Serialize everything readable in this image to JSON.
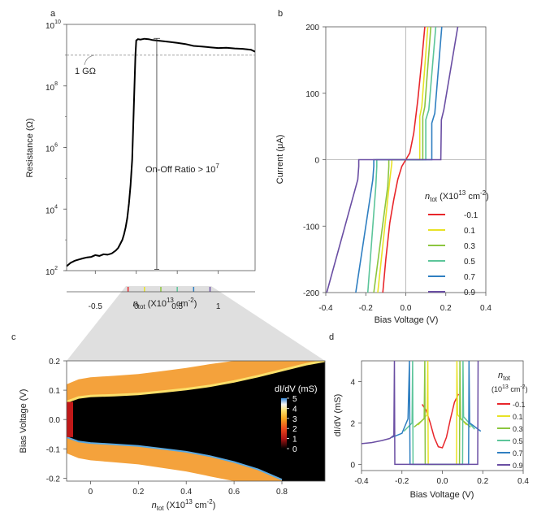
{
  "panel_letters": [
    "a",
    "b",
    "c",
    "d"
  ],
  "chart_data": [
    {
      "panel": "a",
      "type": "line",
      "xlabel_main": "n",
      "xlabel_sub": "tot",
      "xlabel_unit": "(X10",
      "xlabel_exp": "13",
      "xlabel_unit2": "cm",
      "xlabel_exp2": "-2",
      "xlabel_close": ")",
      "ylabel": "Resistance (Ω)",
      "xlim": [
        -0.85,
        1.45
      ],
      "yscale": "log",
      "ylim": [
        100,
        10000000000
      ],
      "x_ticks": [
        -0.5,
        0,
        0.5,
        1
      ],
      "x_tick_labels": [
        "-0.5",
        "0",
        "0.5",
        "1"
      ],
      "y_ticks": [
        100,
        10000,
        1000000,
        100000000,
        10000000000
      ],
      "y_tick_base": "10",
      "y_tick_exps": [
        "2",
        "4",
        "6",
        "8",
        "10"
      ],
      "reference_line": {
        "y": 1000000000,
        "style": "dashed",
        "label_value": "1 G",
        "label_unit": "Ω"
      },
      "annotation": {
        "text": "On-Off Ratio > 10",
        "exp": "7",
        "x": 0.25,
        "y_low": 110,
        "y_high": 3500000000
      },
      "color_markers": {
        "x": [
          -0.1,
          0.1,
          0.3,
          0.5,
          0.7,
          0.9
        ],
        "colors": [
          "#e8262b",
          "#e8e226",
          "#8cc63f",
          "#5cc59a",
          "#2f7fc1",
          "#6a4ea3"
        ]
      },
      "series": [
        {
          "color": "#000000",
          "x": [
            -0.85,
            -0.8,
            -0.75,
            -0.7,
            -0.65,
            -0.6,
            -0.55,
            -0.5,
            -0.45,
            -0.4,
            -0.35,
            -0.3,
            -0.25,
            -0.22,
            -0.2,
            -0.17,
            -0.15,
            -0.13,
            -0.11,
            -0.09,
            -0.07,
            -0.05,
            -0.03,
            -0.01,
            0.0,
            0.02,
            0.05,
            0.1,
            0.15,
            0.2,
            0.3,
            0.4,
            0.5,
            0.6,
            0.7,
            0.8,
            0.9,
            1.0,
            1.1,
            1.2,
            1.3,
            1.4,
            1.45
          ],
          "y": [
            140,
            180,
            210,
            230,
            250,
            270,
            280,
            320,
            300,
            340,
            330,
            360,
            450,
            550,
            700,
            1000,
            1500,
            2500,
            5000,
            15000,
            60000,
            400000,
            20000000,
            1000000000,
            3000000000,
            3300000000,
            3200000000,
            3400000000,
            3300000000,
            3100000000,
            2900000000,
            2700000000,
            2500000000,
            2300000000,
            2000000000,
            1900000000,
            1800000000,
            1700000000,
            1750000000,
            1650000000,
            1600000000,
            1500000000,
            1300000000
          ]
        }
      ]
    },
    {
      "panel": "b",
      "type": "line",
      "xlabel": "Bias Voltage (V)",
      "ylabel": "Current (μA)",
      "xlim": [
        -0.4,
        0.4
      ],
      "ylim": [
        -200,
        200
      ],
      "x_ticks": [
        -0.4,
        -0.2,
        0.0,
        0.2,
        0.4
      ],
      "x_tick_labels": [
        "-0.4",
        "-0.2",
        "0.0",
        "0.2",
        "0.4"
      ],
      "y_ticks": [
        -200,
        -100,
        0,
        100,
        200
      ],
      "y_tick_labels": [
        "-200",
        "-100",
        "0",
        "100",
        "200"
      ],
      "legend_title_main": "n",
      "legend_title_sub": "tot",
      "legend_title_rest": "(X10",
      "legend_title_exp": "13",
      "legend_title_unit": "cm",
      "legend_title_exp2": "-2",
      "legend_title_close": ")",
      "legend_placement": "lower-right",
      "series": [
        {
          "name": "-0.1",
          "color": "#e8262b",
          "x": [
            -0.115,
            -0.1,
            -0.08,
            -0.06,
            -0.04,
            -0.02,
            0.0,
            0.02,
            0.04,
            0.06,
            0.08,
            0.095
          ],
          "y": [
            -200,
            -150,
            -95,
            -60,
            -30,
            -10,
            0,
            10,
            40,
            90,
            150,
            200
          ]
        },
        {
          "name": "0.1",
          "color": "#e8e226",
          "x": [
            -0.14,
            -0.08,
            -0.07,
            -0.07,
            0.07,
            0.07,
            0.08,
            0.11
          ],
          "y": [
            -200,
            -30,
            -5,
            0,
            0,
            65,
            80,
            200
          ]
        },
        {
          "name": "0.3",
          "color": "#8cc63f",
          "x": [
            -0.16,
            -0.09,
            -0.085,
            -0.085,
            0.085,
            0.085,
            0.095,
            0.125
          ],
          "y": [
            -200,
            -40,
            -10,
            0,
            0,
            65,
            80,
            200
          ]
        },
        {
          "name": "0.5",
          "color": "#5cc59a",
          "x": [
            -0.19,
            -0.15,
            -0.145,
            -0.145,
            0.1,
            0.1,
            0.115,
            0.15
          ],
          "y": [
            -200,
            -40,
            -10,
            0,
            0,
            60,
            75,
            200
          ]
        },
        {
          "name": "0.7",
          "color": "#2f7fc1",
          "x": [
            -0.25,
            -0.165,
            -0.16,
            -0.16,
            0.13,
            0.13,
            0.145,
            0.18
          ],
          "y": [
            -200,
            -30,
            -10,
            0,
            0,
            55,
            70,
            200
          ]
        },
        {
          "name": "0.9",
          "color": "#6a4ea3",
          "x": [
            -0.395,
            -0.24,
            -0.235,
            -0.235,
            0.175,
            0.178,
            0.19,
            0.26
          ],
          "y": [
            -200,
            -30,
            -10,
            0,
            0,
            60,
            75,
            200
          ]
        }
      ]
    },
    {
      "panel": "c",
      "type": "heatmap",
      "xlabel_main": "n",
      "xlabel_sub": "tot",
      "xlabel_unit": "(X10",
      "xlabel_exp": "13",
      "xlabel_unit2": "cm",
      "xlabel_exp2": "-2",
      "xlabel_close": ")",
      "ylabel": "Bias Voltage (V)",
      "xlim": [
        -0.1,
        0.98
      ],
      "ylim": [
        -0.21,
        0.2
      ],
      "x_ticks": [
        0,
        0.2,
        0.4,
        0.6,
        0.8
      ],
      "x_tick_labels": [
        "0",
        "0.2",
        "0.4",
        "0.6",
        "0.8"
      ],
      "y_ticks": [
        -0.2,
        -0.1,
        0.0,
        0.1,
        0.2
      ],
      "y_tick_labels": [
        "-0.2",
        "-0.1",
        "0.0",
        "0.1",
        "0.2"
      ],
      "colorbar_label": "dI/dV (mS)",
      "colorbar_ticks": [
        "5",
        "4",
        "3",
        "2",
        "1",
        "0"
      ],
      "colorbar_range": [
        0,
        5
      ],
      "gap_upper_edge": {
        "x": [
          -0.1,
          -0.05,
          0.0,
          0.1,
          0.2,
          0.3,
          0.4,
          0.5,
          0.6,
          0.7,
          0.8,
          0.9,
          0.98
        ],
        "y": [
          0.06,
          0.075,
          0.08,
          0.083,
          0.087,
          0.095,
          0.104,
          0.115,
          0.13,
          0.148,
          0.168,
          0.188,
          0.2
        ]
      },
      "gap_lower_edge": {
        "x": [
          -0.1,
          -0.05,
          0.0,
          0.1,
          0.2,
          0.3,
          0.4,
          0.5,
          0.6,
          0.7,
          0.8
        ],
        "y": [
          -0.06,
          -0.075,
          -0.08,
          -0.085,
          -0.09,
          -0.1,
          -0.11,
          -0.125,
          -0.145,
          -0.17,
          -0.205
        ]
      }
    },
    {
      "panel": "d",
      "type": "line",
      "xlabel": "Bias Voltage (V)",
      "ylabel": "dI/dV (mS)",
      "xlim": [
        -0.4,
        0.4
      ],
      "ylim": [
        -0.3,
        5
      ],
      "x_ticks": [
        -0.4,
        -0.2,
        0.0,
        0.2,
        0.4
      ],
      "x_tick_labels": [
        "-0.4",
        "-0.2",
        "0.0",
        "0.2",
        "0.4"
      ],
      "y_ticks": [
        0,
        2,
        4
      ],
      "y_tick_labels": [
        "0",
        "2",
        "4"
      ],
      "legend_title_main": "n",
      "legend_title_sub": "tot",
      "legend_title_rest": "(10",
      "legend_title_exp": "13",
      "legend_title_unit": "cm",
      "legend_title_exp2": "-2",
      "legend_title_close": ")",
      "legend_placement": "right",
      "series": [
        {
          "name": "-0.1",
          "color": "#e8262b",
          "x": [
            -0.1,
            -0.08,
            -0.06,
            -0.04,
            -0.02,
            0.0,
            0.02,
            0.04,
            0.06,
            0.08
          ],
          "y": [
            2.9,
            2.6,
            2.0,
            1.3,
            0.85,
            0.8,
            1.3,
            2.2,
            3.0,
            3.4
          ]
        },
        {
          "name": "0.1",
          "color": "#e8e226",
          "x": [
            -0.12,
            -0.075,
            -0.072,
            -0.07,
            0.07,
            0.072,
            0.075,
            0.12
          ],
          "y": [
            1.9,
            2.4,
            5,
            0,
            0,
            5,
            2.4,
            1.9
          ]
        },
        {
          "name": "0.3",
          "color": "#8cc63f",
          "x": [
            -0.14,
            -0.09,
            -0.087,
            -0.085,
            0.085,
            0.087,
            0.09,
            0.14
          ],
          "y": [
            1.8,
            2.2,
            5,
            0,
            0,
            5,
            2.2,
            1.8
          ]
        },
        {
          "name": "0.5",
          "color": "#5cc59a",
          "x": [
            -0.19,
            -0.15,
            -0.147,
            -0.145,
            0.1,
            0.102,
            0.105,
            0.16
          ],
          "y": [
            1.6,
            2.0,
            5,
            0,
            0,
            5,
            2.3,
            1.7
          ]
        },
        {
          "name": "0.7",
          "color": "#2f7fc1",
          "x": [
            -0.25,
            -0.2,
            -0.17,
            -0.163,
            -0.16,
            0.13,
            0.132,
            0.135,
            0.19
          ],
          "y": [
            1.3,
            1.5,
            2.2,
            5,
            0,
            0,
            5,
            2.0,
            1.6
          ]
        },
        {
          "name": "0.9",
          "color": "#6a4ea3",
          "x": [
            -0.4,
            -0.35,
            -0.3,
            -0.26,
            -0.24,
            -0.237,
            -0.235,
            0.175,
            0.177
          ],
          "y": [
            1.0,
            1.05,
            1.15,
            1.25,
            1.4,
            5,
            0,
            0,
            5
          ]
        }
      ]
    }
  ]
}
